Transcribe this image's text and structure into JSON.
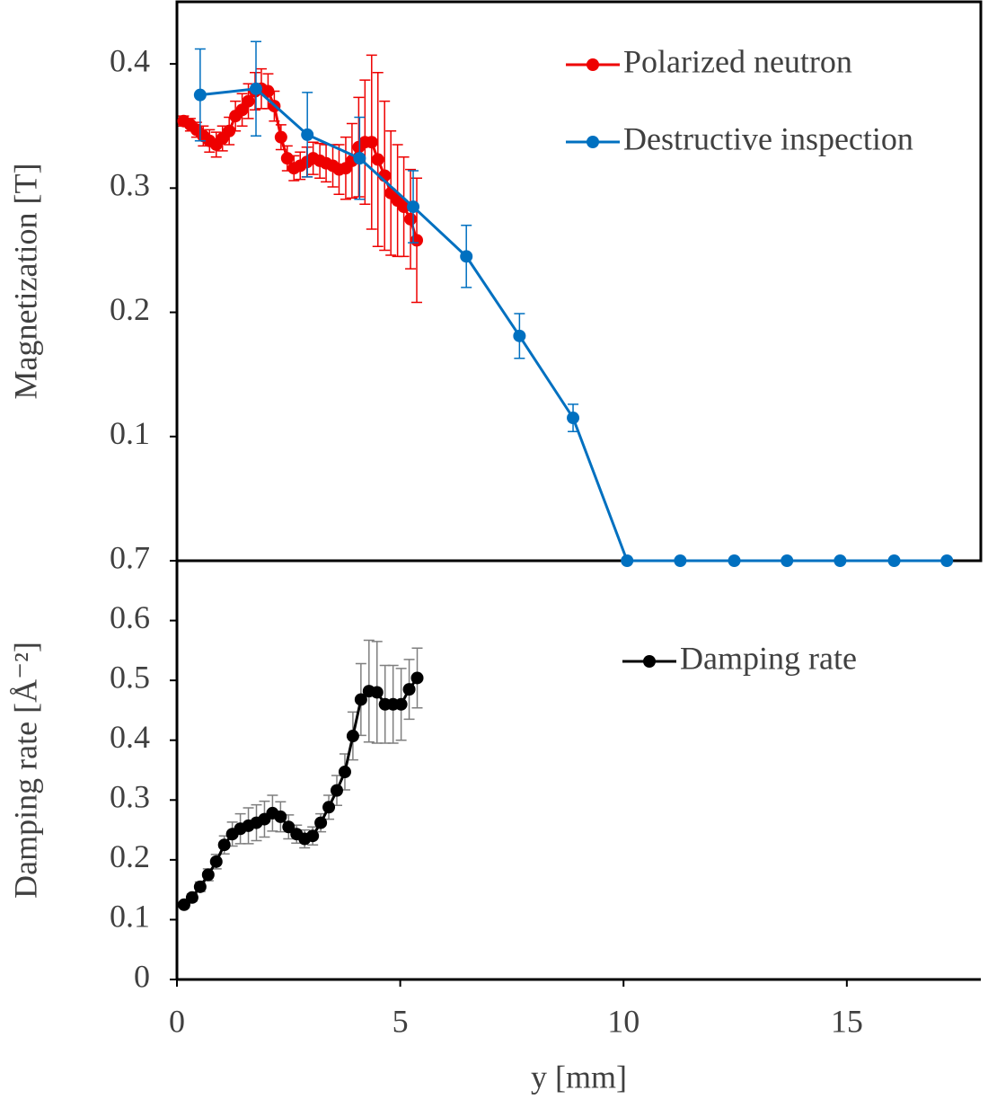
{
  "chart_data": [
    {
      "type": "line",
      "y_label": "Magnetization [T]",
      "xlim": [
        0,
        18
      ],
      "ylim": [
        0,
        0.45
      ],
      "yticks": [
        0.1,
        0.2,
        0.3,
        0.4
      ],
      "legend": "upper right",
      "series": [
        {
          "name": "Polarized neutron",
          "color": "#ee0000",
          "error_color": "#ee0000",
          "x": [
            0.15,
            0.3,
            0.44,
            0.59,
            0.73,
            0.88,
            1.02,
            1.17,
            1.31,
            1.46,
            1.6,
            1.75,
            1.89,
            2.04,
            2.18,
            2.33,
            2.47,
            2.62,
            2.76,
            2.91,
            3.05,
            3.2,
            3.34,
            3.49,
            3.63,
            3.78,
            3.92,
            4.07,
            4.21,
            4.36,
            4.5,
            4.65,
            4.79,
            4.94,
            5.08,
            5.23,
            5.37
          ],
          "values": [
            0.354,
            0.351,
            0.347,
            0.342,
            0.338,
            0.335,
            0.34,
            0.346,
            0.358,
            0.363,
            0.37,
            0.378,
            0.38,
            0.378,
            0.366,
            0.341,
            0.324,
            0.316,
            0.318,
            0.321,
            0.324,
            0.322,
            0.32,
            0.318,
            0.315,
            0.316,
            0.322,
            0.333,
            0.337,
            0.337,
            0.323,
            0.31,
            0.296,
            0.29,
            0.285,
            0.275,
            0.258
          ],
          "errors": [
            0.004,
            0.005,
            0.006,
            0.008,
            0.009,
            0.01,
            0.01,
            0.011,
            0.012,
            0.013,
            0.014,
            0.015,
            0.016,
            0.014,
            0.012,
            0.01,
            0.01,
            0.01,
            0.011,
            0.012,
            0.013,
            0.014,
            0.015,
            0.017,
            0.02,
            0.025,
            0.03,
            0.04,
            0.05,
            0.07,
            0.07,
            0.06,
            0.05,
            0.045,
            0.04,
            0.04,
            0.05
          ]
        },
        {
          "name": "Destructive inspection",
          "color": "#0070c0",
          "error_color": "#0070c0",
          "x": [
            0.52,
            1.77,
            2.92,
            4.09,
            5.29,
            6.48,
            7.67,
            8.87,
            10.08,
            11.27,
            12.48,
            13.66,
            14.85,
            16.06,
            17.24
          ],
          "values": [
            0.375,
            0.38,
            0.343,
            0.324,
            0.285,
            0.245,
            0.181,
            0.115,
            0,
            0,
            0,
            0,
            0,
            0,
            0
          ],
          "errors": [
            0.037,
            0.038,
            0.034,
            0.033,
            0.029,
            0.025,
            0.018,
            0.011,
            0,
            0,
            0,
            0,
            0,
            0,
            0
          ]
        }
      ]
    },
    {
      "type": "line",
      "y_label": "Damping rate [Å⁻²]",
      "x_label": "y [mm]",
      "xlim": [
        0,
        18
      ],
      "xticks": [
        0,
        5,
        10,
        15
      ],
      "ylim": [
        0,
        0.7
      ],
      "yticks": [
        0,
        0.1,
        0.2,
        0.3,
        0.4,
        0.5,
        0.6,
        0.7
      ],
      "legend": "upper right",
      "series": [
        {
          "name": "Damping rate",
          "color": "#000000",
          "error_color": "#7f7f7f",
          "x": [
            0.16,
            0.34,
            0.52,
            0.7,
            0.88,
            1.06,
            1.24,
            1.42,
            1.6,
            1.78,
            1.96,
            2.14,
            2.32,
            2.5,
            2.68,
            2.86,
            3.04,
            3.22,
            3.4,
            3.58,
            3.76,
            3.94,
            4.12,
            4.3,
            4.48,
            4.66,
            4.84,
            5.02,
            5.2,
            5.38
          ],
          "values": [
            0.125,
            0.137,
            0.155,
            0.175,
            0.197,
            0.225,
            0.243,
            0.252,
            0.257,
            0.262,
            0.268,
            0.278,
            0.272,
            0.255,
            0.243,
            0.235,
            0.24,
            0.262,
            0.288,
            0.316,
            0.347,
            0.407,
            0.468,
            0.482,
            0.48,
            0.46,
            0.46,
            0.46,
            0.485,
            0.504
          ],
          "errors": [
            0.005,
            0.006,
            0.008,
            0.01,
            0.012,
            0.015,
            0.02,
            0.025,
            0.03,
            0.03,
            0.03,
            0.03,
            0.025,
            0.02,
            0.015,
            0.015,
            0.015,
            0.015,
            0.02,
            0.025,
            0.03,
            0.04,
            0.06,
            0.085,
            0.085,
            0.065,
            0.065,
            0.06,
            0.05,
            0.05
          ]
        }
      ]
    }
  ]
}
